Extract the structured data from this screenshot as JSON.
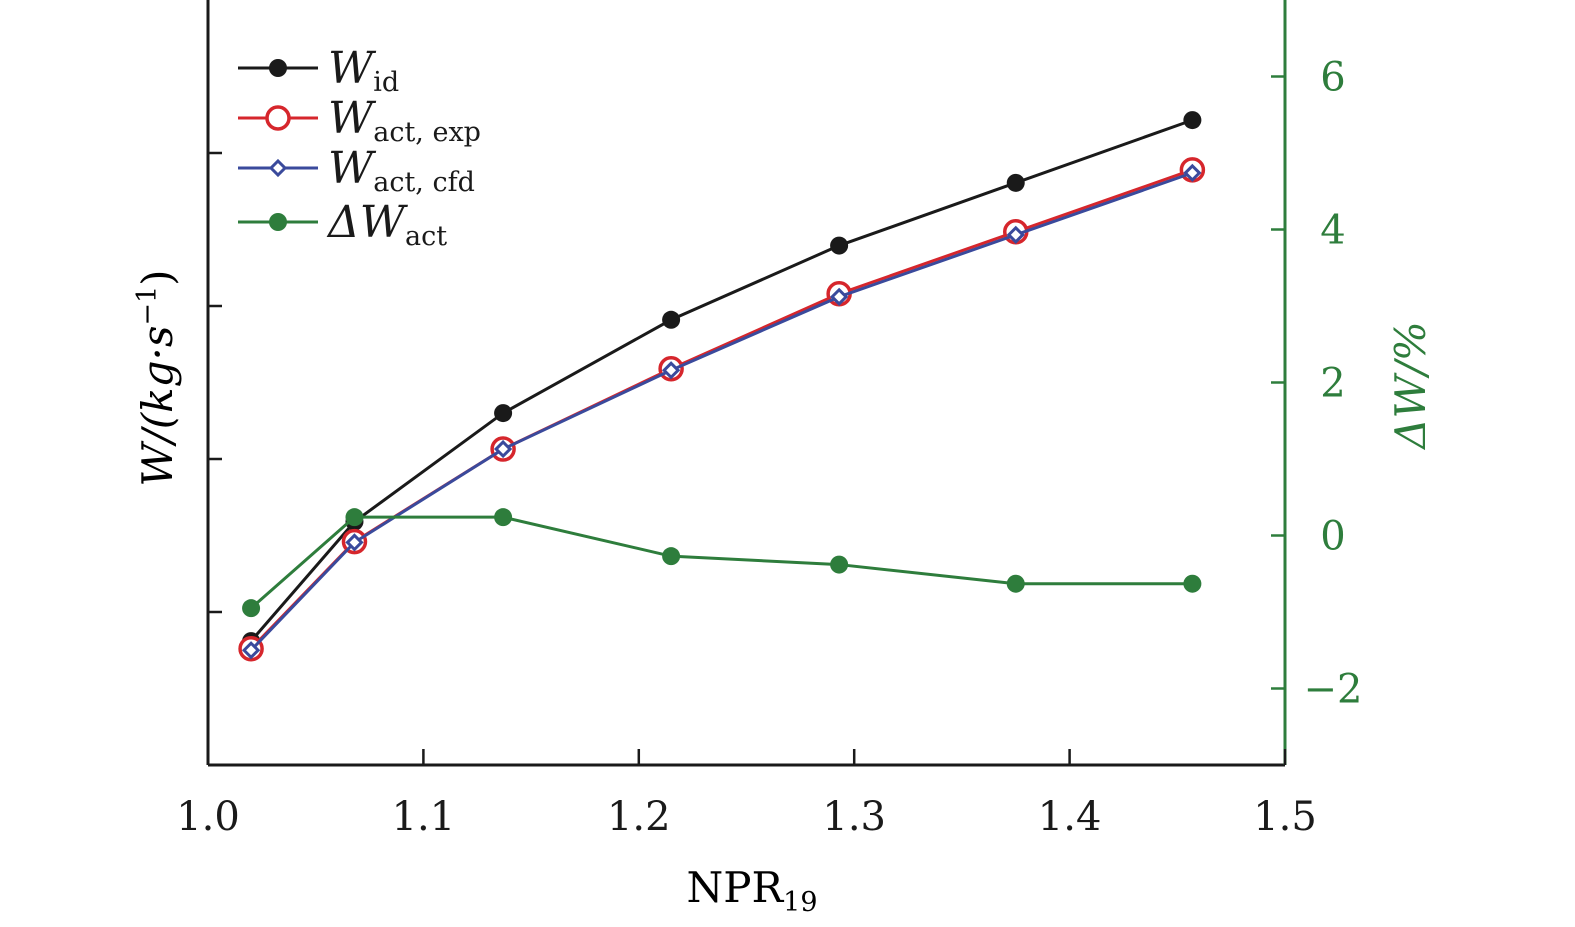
{
  "chart_data": {
    "type": "line",
    "x": [
      1.02,
      1.068,
      1.137,
      1.215,
      1.293,
      1.375,
      1.457
    ],
    "xlim": [
      1.0,
      1.5
    ],
    "xticks": [
      "1.0",
      "1.1",
      "1.2",
      "1.3",
      "1.4",
      "1.5"
    ],
    "xlabel": {
      "main": "NPR",
      "sub": "19"
    },
    "ylabel_left": "W/(kg·s",
    "ylabel_left_sup": "−1",
    "ylabel_left_close": ")",
    "ylim_left": [
      0,
      1
    ],
    "yticks_left_count": 4,
    "ylabel_right": "ΔW/%",
    "ylim_right": [
      -3,
      7
    ],
    "yticks_right": [
      -2,
      0,
      2,
      4,
      6
    ],
    "yticks_right_labels": [
      "−2",
      "0",
      "2",
      "4",
      "6"
    ],
    "series": [
      {
        "name": "W",
        "sub": "id",
        "axis": "left",
        "color": "#1a1a1a",
        "marker": "filled-circle",
        "values": [
          0.162,
          0.318,
          0.46,
          0.582,
          0.679,
          0.761,
          0.843
        ]
      },
      {
        "name": "W",
        "sub": "act, exp",
        "axis": "left",
        "color": "#d6262c",
        "marker": "open-circle",
        "values": [
          0.152,
          0.292,
          0.413,
          0.518,
          0.616,
          0.697,
          0.778
        ]
      },
      {
        "name": "W",
        "sub": "act, cfd",
        "axis": "left",
        "color": "#3a4a9c",
        "marker": "open-diamond",
        "values": [
          0.15,
          0.291,
          0.413,
          0.516,
          0.612,
          0.693,
          0.774
        ]
      },
      {
        "name": "ΔW",
        "sub": "act",
        "axis": "right",
        "color": "#2e7d3c",
        "marker": "filled-circle",
        "values": [
          -0.95,
          0.24,
          0.24,
          -0.27,
          -0.38,
          -0.63,
          -0.63
        ]
      }
    ]
  }
}
